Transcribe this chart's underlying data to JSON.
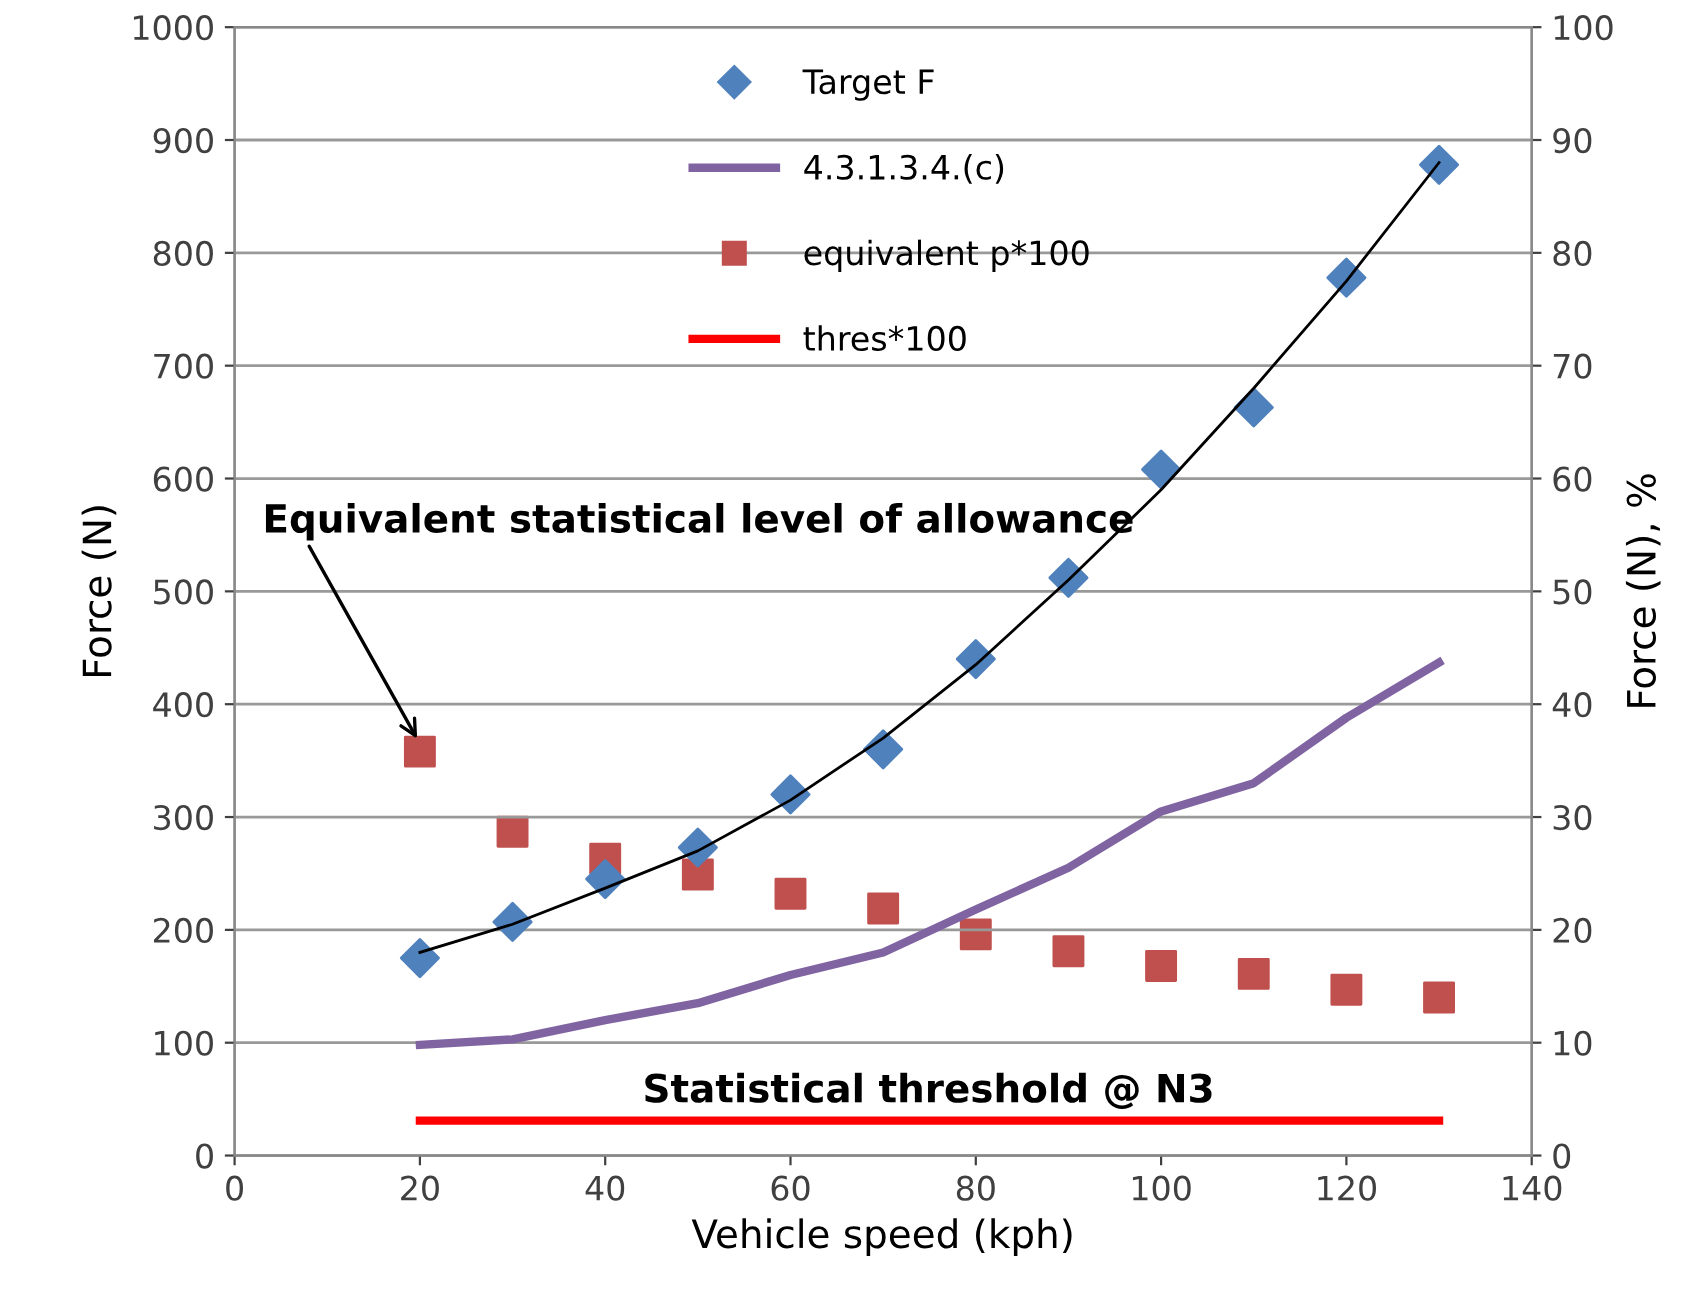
{
  "chart_data": {
    "type": "line",
    "xlabel": "Vehicle speed (kph)",
    "ylabel": "Force (N)",
    "y2label": "Force (N), %",
    "xlim": [
      0,
      140
    ],
    "xticks": [
      0,
      20,
      40,
      60,
      80,
      100,
      120,
      140
    ],
    "ylim": [
      0,
      1000
    ],
    "yticks": [
      0,
      100,
      200,
      300,
      400,
      500,
      600,
      700,
      800,
      900,
      1000
    ],
    "y2lim": [
      0,
      100
    ],
    "y2ticks": [
      0,
      10,
      20,
      30,
      40,
      50,
      60,
      70,
      80,
      90,
      100
    ],
    "grid": "y",
    "legend": "top",
    "series": [
      {
        "name": "Target F",
        "type": "scatter",
        "marker": "diamond",
        "color": "#4f81bd",
        "x": [
          20,
          30,
          40,
          50,
          60,
          70,
          80,
          90,
          100,
          110,
          120,
          130
        ],
        "values": [
          175,
          207,
          245,
          273,
          320,
          360,
          440,
          512,
          608,
          663,
          778,
          878
        ]
      },
      {
        "name": "4.3.1.3.4.(c)",
        "marker": "none",
        "color": "#8064a2",
        "x": [
          20,
          30,
          40,
          50,
          60,
          70,
          80,
          90,
          100,
          110,
          120,
          130
        ],
        "values": [
          98,
          103,
          120,
          135,
          160,
          180,
          218,
          255,
          305,
          330,
          388,
          437
        ]
      },
      {
        "name": "equivalent p*100",
        "type": "scatter",
        "marker": "square",
        "axis": "y2",
        "color": "#c0504d",
        "x": [
          20,
          30,
          40,
          50,
          60,
          70,
          80,
          90,
          100,
          110,
          120,
          130
        ],
        "values": [
          35.8,
          28.7,
          26.3,
          24.9,
          23.2,
          21.9,
          19.6,
          18.1,
          16.8,
          16.1,
          14.7,
          14.0
        ]
      },
      {
        "name": "thres*100",
        "marker": "none",
        "axis": "y2",
        "color": "#ff0000",
        "x": [
          20,
          130
        ],
        "values": [
          3.1,
          3.1
        ]
      },
      {
        "marker": "none",
        "color": "#000000",
        "x": [
          20,
          30,
          40,
          50,
          60,
          70,
          80,
          90,
          100,
          110,
          120,
          130
        ],
        "values": [
          180,
          205,
          237,
          270,
          315,
          370,
          435,
          510,
          590,
          680,
          775,
          880
        ]
      }
    ],
    "annotations": [
      {
        "text": "Equivalent statistical level of allowance",
        "x": 20,
        "y": 365
      },
      "Statistical threshold @ N3"
    ]
  }
}
